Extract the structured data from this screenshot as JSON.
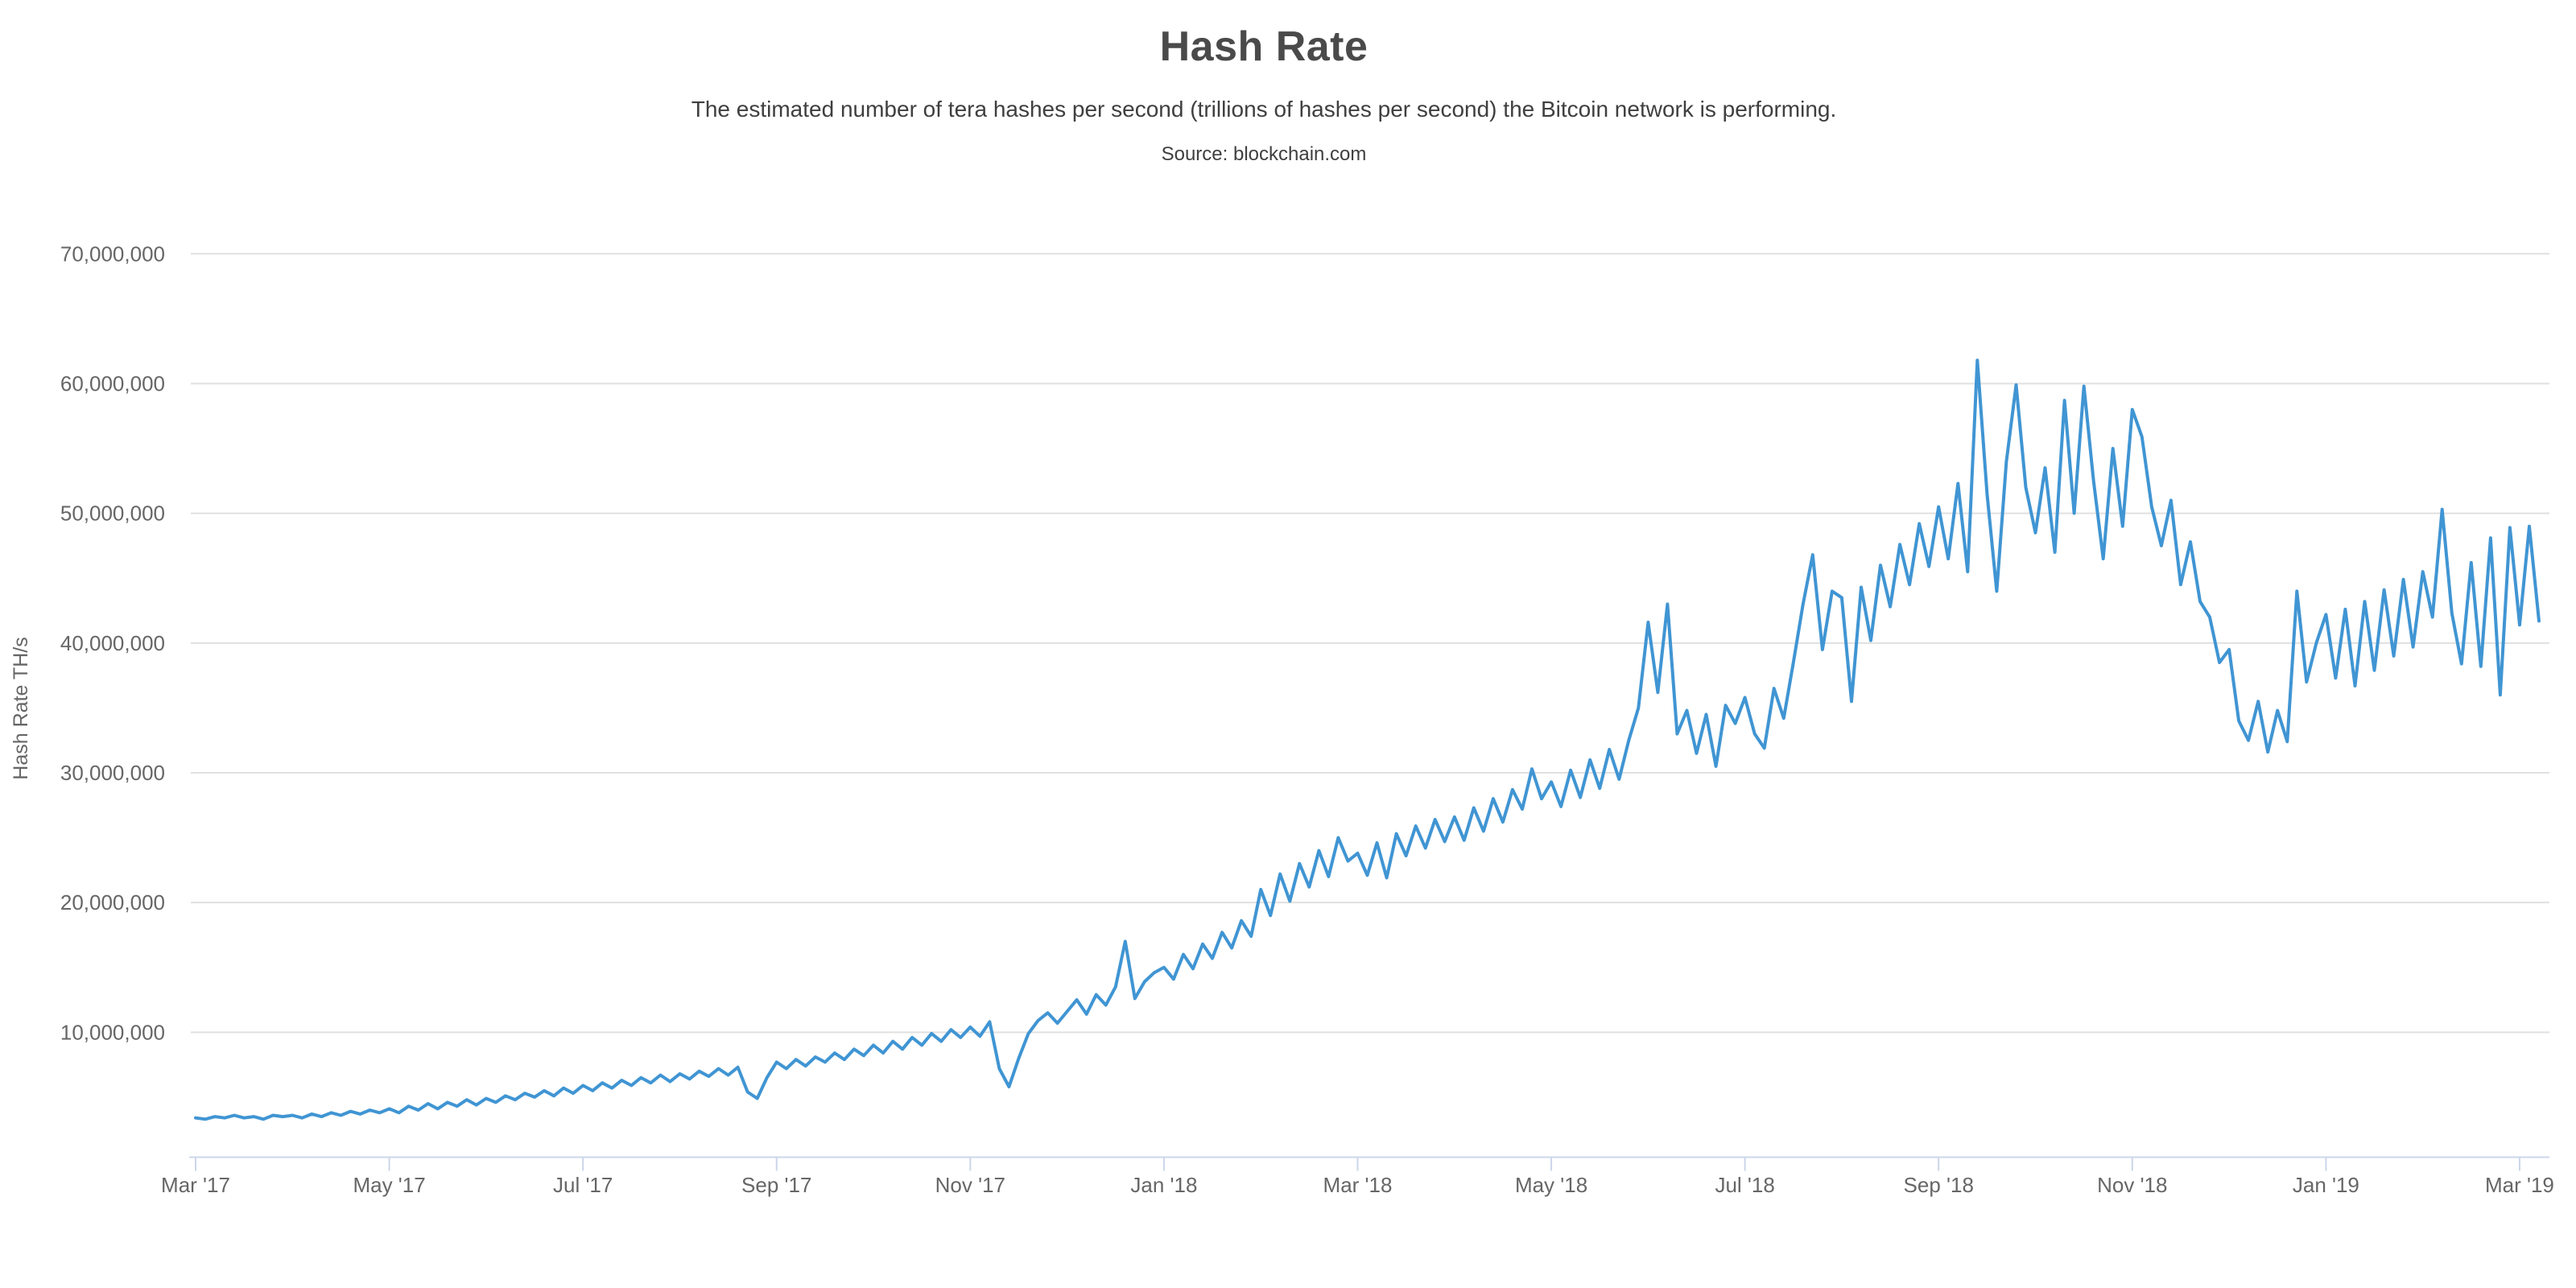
{
  "header": {
    "title": "Hash Rate",
    "subtitle": "The estimated number of tera hashes per second (trillions of hashes per second) the Bitcoin network is performing.",
    "source": "Source: blockchain.com"
  },
  "chart_data": {
    "type": "line",
    "title": "Hash Rate",
    "subtitle": "The estimated number of tera hashes per second (trillions of hashes per second) the Bitcoin network is performing.",
    "source": "Source: blockchain.com",
    "ylabel": "Hash Rate TH/s",
    "xlabel": "",
    "legend": "none",
    "grid": "horizontal-only",
    "x_start": "2017-03-01",
    "x_end": "2019-03-08",
    "points_per_month": 10,
    "unit": "million TH/s",
    "ylim_million": [
      0,
      74
    ],
    "y_ticks_million": [
      10,
      20,
      30,
      40,
      50,
      60,
      70
    ],
    "y_tick_labels": [
      "10,000,000",
      "20,000,000",
      "30,000,000",
      "40,000,000",
      "50,000,000",
      "60,000,000",
      "70,000,000"
    ],
    "x_tick_months": [
      0,
      2,
      4,
      6,
      8,
      10,
      12,
      14,
      16,
      18,
      20,
      22,
      24
    ],
    "x_tick_labels": [
      "Mar '17",
      "May '17",
      "Jul '17",
      "Sep '17",
      "Nov '17",
      "Jan '18",
      "Mar '18",
      "May '18",
      "Jul '18",
      "Sep '18",
      "Nov '18",
      "Jan '19",
      "Mar '19"
    ],
    "notable_points": {
      "start_value_million": 3.4,
      "nov_2017_crash_low_million": 5.8,
      "peak_sep_2018_million": 61.8,
      "dec_2018_low_million": 31.6,
      "end_value_million": 41.7
    },
    "values_million": [
      3.4,
      3.3,
      3.5,
      3.4,
      3.6,
      3.4,
      3.5,
      3.3,
      3.6,
      3.5,
      3.6,
      3.4,
      3.7,
      3.5,
      3.8,
      3.6,
      3.9,
      3.7,
      4.0,
      3.8,
      4.1,
      3.8,
      4.3,
      4.0,
      4.5,
      4.1,
      4.6,
      4.3,
      4.8,
      4.4,
      4.9,
      4.6,
      5.1,
      4.8,
      5.3,
      5.0,
      5.5,
      5.1,
      5.7,
      5.3,
      5.9,
      5.5,
      6.1,
      5.7,
      6.3,
      5.9,
      6.5,
      6.1,
      6.7,
      6.2,
      6.8,
      6.4,
      7.0,
      6.6,
      7.2,
      6.7,
      7.3,
      5.4,
      4.9,
      6.5,
      7.7,
      7.2,
      7.9,
      7.4,
      8.1,
      7.7,
      8.4,
      7.9,
      8.7,
      8.2,
      9.0,
      8.4,
      9.3,
      8.7,
      9.6,
      9.0,
      9.9,
      9.3,
      10.2,
      9.6,
      10.4,
      9.7,
      10.8,
      7.2,
      5.8,
      8.0,
      9.9,
      10.9,
      11.5,
      10.7,
      11.6,
      12.5,
      11.4,
      12.9,
      12.1,
      13.5,
      17.0,
      12.6,
      13.9,
      14.6,
      15.0,
      14.1,
      16.0,
      14.9,
      16.8,
      15.7,
      17.7,
      16.5,
      18.6,
      17.4,
      21.0,
      19.0,
      22.2,
      20.1,
      23.0,
      21.2,
      24.0,
      22.0,
      25.0,
      23.2,
      23.8,
      22.1,
      24.6,
      21.9,
      25.3,
      23.6,
      25.9,
      24.2,
      26.4,
      24.7,
      26.6,
      24.8,
      27.3,
      25.5,
      28.0,
      26.2,
      28.7,
      27.2,
      30.3,
      28.0,
      29.3,
      27.4,
      30.2,
      28.1,
      31.0,
      28.8,
      31.8,
      29.5,
      32.5,
      35.0,
      41.6,
      36.2,
      43.0,
      33.0,
      34.8,
      31.5,
      34.5,
      30.5,
      35.2,
      33.8,
      35.8,
      33.0,
      31.9,
      36.5,
      34.2,
      38.5,
      43.0,
      46.8,
      39.5,
      44.0,
      43.5,
      35.5,
      44.3,
      40.2,
      46.0,
      42.8,
      47.6,
      44.5,
      49.2,
      45.9,
      50.5,
      46.5,
      52.3,
      45.5,
      61.8,
      51.5,
      44.0,
      54.0,
      59.9,
      52.0,
      48.5,
      53.5,
      47.0,
      58.7,
      50.0,
      59.8,
      52.5,
      46.5,
      55.0,
      49.0,
      58.0,
      55.9,
      50.5,
      47.5,
      51.0,
      44.5,
      47.8,
      43.2,
      42.0,
      38.5,
      39.5,
      34.0,
      32.5,
      35.5,
      31.6,
      34.8,
      32.4,
      44.0,
      37.0,
      40.0,
      42.2,
      37.3,
      42.6,
      36.7,
      43.2,
      37.9,
      44.1,
      39.0,
      44.9,
      39.7,
      45.5,
      42.0,
      50.3,
      42.3,
      38.4,
      46.2,
      38.2,
      48.1,
      36.0,
      48.9,
      41.4,
      49.0,
      41.7
    ],
    "colors": {
      "line": "#4095d3",
      "gridline": "#e0e0e0",
      "axis_line": "#ccd6eb",
      "tick": "#ccd6eb",
      "axis_label": "#666666",
      "title": "#4a4a4a",
      "subtitle": "#3f3f3f"
    }
  }
}
